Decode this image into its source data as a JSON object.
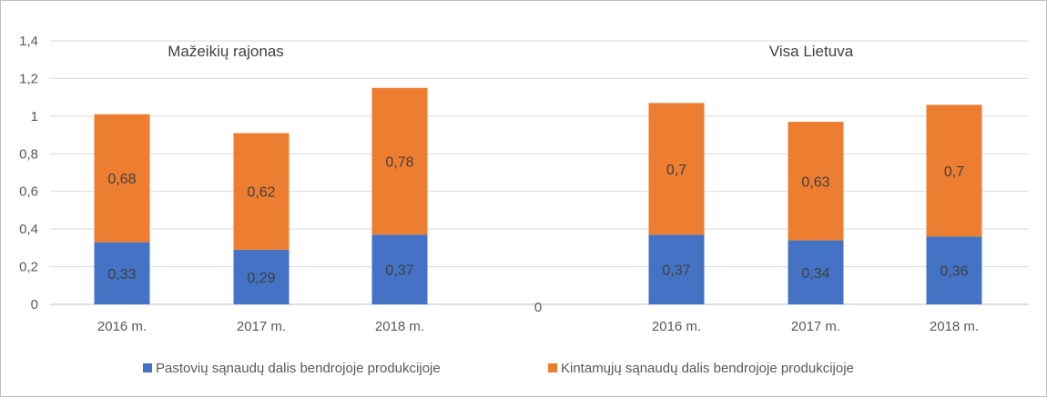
{
  "chart_data": {
    "type": "bar",
    "stacked": true,
    "ylim": [
      0,
      1.4
    ],
    "yticks": [
      "0",
      "0,2",
      "0,4",
      "0,6",
      "0,8",
      "1",
      "1,2",
      "1,4"
    ],
    "ytick_values": [
      0,
      0.2,
      0.4,
      0.6,
      0.8,
      1.0,
      1.2,
      1.4
    ],
    "grid": true,
    "legend_position": "bottom",
    "groups": [
      {
        "label": "Mažeikių rajonas",
        "categories": [
          "2016 m.",
          "2017 m.",
          "2018 m."
        ]
      },
      {
        "label": "Visa Lietuva",
        "categories": [
          "2016 m.",
          "2017 m.",
          "2018 m."
        ]
      }
    ],
    "gap_label": "0",
    "series": [
      {
        "name": "Pastovių sąnaudų dalis bendrojoje produkcijoje",
        "color": "#4472c4",
        "values": [
          0.33,
          0.29,
          0.37,
          0.37,
          0.34,
          0.36
        ],
        "labels": [
          "0,33",
          "0,29",
          "0,37",
          "0,37",
          "0,34",
          "0,36"
        ]
      },
      {
        "name": "Kintamųjų sąnaudų dalis bendrojoje produkcijoje",
        "color": "#ed7d31",
        "values": [
          0.68,
          0.62,
          0.78,
          0.7,
          0.63,
          0.7
        ],
        "labels": [
          "0,68",
          "0,62",
          "0,78",
          "0,7",
          "0,63",
          "0,7"
        ]
      }
    ]
  }
}
